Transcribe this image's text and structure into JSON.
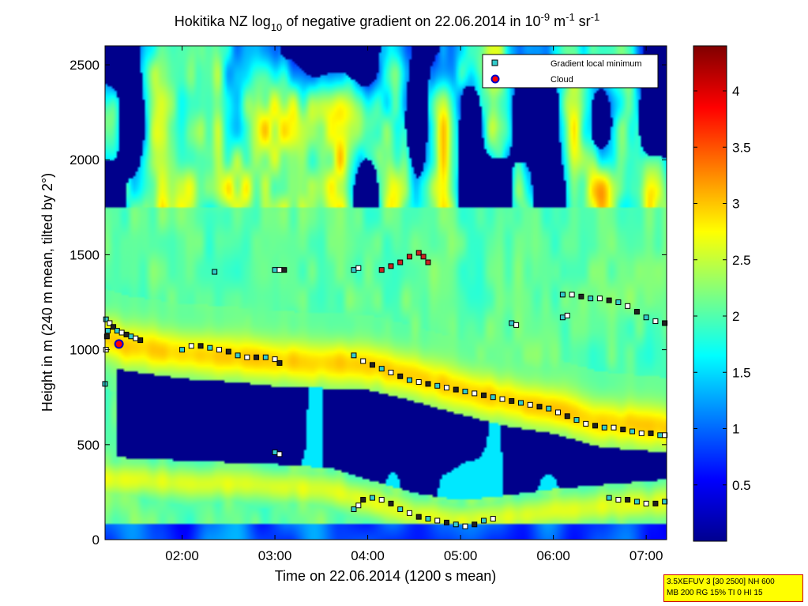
{
  "chart_data": {
    "type": "heatmap",
    "title": {
      "pre": "Hokitika NZ log",
      "sub": "10",
      "mid": " of negative gradient on 22.06.2014 in 10",
      "sup1": "-9",
      "mid2": " m",
      "sup2": "-1",
      "mid3": " sr",
      "sup3": "-1"
    },
    "xlabel": "Time on 22.06.2014 (1200 s mean)",
    "ylabel": "Height in m (240 m mean, tilted by 2°)",
    "xlim_hours": [
      1.17,
      7.22
    ],
    "ylim": [
      0,
      2600
    ],
    "xticks": [
      {
        "h": 2,
        "label": "02:00"
      },
      {
        "h": 3,
        "label": "03:00"
      },
      {
        "h": 4,
        "label": "04:00"
      },
      {
        "h": 5,
        "label": "05:00"
      },
      {
        "h": 6,
        "label": "06:00"
      },
      {
        "h": 7,
        "label": "07:00"
      }
    ],
    "yticks": [
      0,
      500,
      1000,
      1500,
      2000,
      2500
    ],
    "colorbar": {
      "range": [
        0,
        4.4
      ],
      "ticks": [
        "0.5",
        "1",
        "1.5",
        "2",
        "2.5",
        "3",
        "3.5",
        "4"
      ],
      "colormap": "jet"
    },
    "legend": {
      "position": "top-right",
      "entries": [
        {
          "label": "Gradient local minimum",
          "marker": "square",
          "color": "#33cccc"
        },
        {
          "label": "Cloud",
          "marker": "circle",
          "color": "#ff0000",
          "edge": "#0000cc"
        }
      ]
    },
    "bands": [
      {
        "name": "main-layer",
        "points": [
          [
            1.17,
            1060
          ],
          [
            1.4,
            1020
          ],
          [
            2.0,
            980
          ],
          [
            2.6,
            960
          ],
          [
            3.0,
            940
          ],
          [
            3.5,
            930
          ],
          [
            4.0,
            920
          ],
          [
            4.5,
            860
          ],
          [
            5.0,
            790
          ],
          [
            5.5,
            730
          ],
          [
            6.0,
            690
          ],
          [
            6.5,
            620
          ],
          [
            7.22,
            590
          ]
        ],
        "half_width": 120,
        "peak": 2.95
      },
      {
        "name": "lower-layer",
        "points": [
          [
            1.17,
            320
          ],
          [
            2.0,
            300
          ],
          [
            3.0,
            280
          ],
          [
            3.6,
            260
          ],
          [
            4.0,
            200
          ],
          [
            4.5,
            130
          ],
          [
            5.0,
            90
          ],
          [
            5.4,
            110
          ],
          [
            6.0,
            150
          ],
          [
            7.22,
            200
          ]
        ],
        "half_width": 90,
        "peak": 2.6
      }
    ],
    "series": [
      {
        "name": "Gradient local minimum",
        "kind": "minimum-track",
        "segments": [
          [
            [
              1.18,
              1160
            ],
            [
              1.22,
              1140
            ],
            [
              1.26,
              1120
            ],
            [
              1.3,
              1100
            ],
            [
              1.35,
              1090
            ],
            [
              1.4,
              1080
            ],
            [
              1.45,
              1070
            ],
            [
              1.5,
              1060
            ],
            [
              1.55,
              1050
            ]
          ],
          [
            [
              1.17,
              820
            ],
            [
              1.18,
              1000
            ],
            [
              1.19,
              1070
            ],
            [
              1.2,
              1100
            ]
          ],
          [
            [
              2.0,
              1000
            ],
            [
              2.1,
              1020
            ],
            [
              2.2,
              1020
            ],
            [
              2.3,
              1010
            ],
            [
              2.4,
              1000
            ],
            [
              2.5,
              990
            ],
            [
              2.6,
              970
            ],
            [
              2.7,
              960
            ],
            [
              2.8,
              960
            ],
            [
              2.9,
              960
            ],
            [
              3.0,
              950
            ],
            [
              3.05,
              930
            ]
          ],
          [
            [
              2.35,
              1410
            ]
          ],
          [
            [
              3.0,
              1420
            ],
            [
              3.05,
              1420
            ],
            [
              3.1,
              1420
            ]
          ],
          [
            [
              3.0,
              460
            ],
            [
              3.05,
              450
            ]
          ],
          [
            [
              3.85,
              1420
            ],
            [
              3.9,
              1430
            ]
          ],
          [
            [
              3.85,
              970
            ],
            [
              3.95,
              940
            ],
            [
              4.05,
              920
            ],
            [
              4.15,
              900
            ],
            [
              4.25,
              880
            ],
            [
              4.35,
              860
            ],
            [
              4.45,
              840
            ],
            [
              4.55,
              830
            ],
            [
              4.65,
              820
            ],
            [
              4.75,
              810
            ],
            [
              4.85,
              800
            ],
            [
              4.95,
              790
            ],
            [
              5.05,
              780
            ],
            [
              5.15,
              770
            ],
            [
              5.25,
              760
            ],
            [
              5.35,
              750
            ],
            [
              5.45,
              740
            ],
            [
              5.55,
              730
            ],
            [
              5.65,
              720
            ],
            [
              5.75,
              710
            ],
            [
              5.85,
              700
            ],
            [
              5.95,
              690
            ],
            [
              6.05,
              670
            ],
            [
              6.15,
              650
            ],
            [
              6.25,
              630
            ],
            [
              6.35,
              610
            ],
            [
              6.45,
              600
            ],
            [
              6.55,
              590
            ],
            [
              6.65,
              590
            ],
            [
              6.75,
              580
            ],
            [
              6.85,
              570
            ],
            [
              6.95,
              560
            ],
            [
              7.05,
              560
            ],
            [
              7.15,
              550
            ],
            [
              7.2,
              550
            ]
          ],
          [
            [
              4.15,
              1420
            ],
            [
              4.25,
              1440
            ],
            [
              4.35,
              1460
            ],
            [
              4.45,
              1490
            ],
            [
              4.55,
              1510
            ],
            [
              4.6,
              1490
            ],
            [
              4.65,
              1460
            ]
          ],
          [
            [
              3.85,
              160
            ],
            [
              3.9,
              180
            ],
            [
              3.95,
              210
            ],
            [
              4.05,
              220
            ],
            [
              4.15,
              210
            ],
            [
              4.25,
              190
            ],
            [
              4.35,
              160
            ],
            [
              4.45,
              140
            ],
            [
              4.55,
              120
            ],
            [
              4.65,
              110
            ],
            [
              4.75,
              100
            ],
            [
              4.85,
              90
            ],
            [
              4.95,
              80
            ],
            [
              5.05,
              70
            ],
            [
              5.15,
              80
            ],
            [
              5.25,
              100
            ],
            [
              5.35,
              110
            ]
          ],
          [
            [
              5.55,
              1140
            ],
            [
              5.6,
              1130
            ]
          ],
          [
            [
              6.1,
              1170
            ],
            [
              6.15,
              1180
            ]
          ],
          [
            [
              6.1,
              1290
            ],
            [
              6.2,
              1290
            ],
            [
              6.3,
              1280
            ],
            [
              6.4,
              1270
            ],
            [
              6.5,
              1270
            ],
            [
              6.6,
              1260
            ],
            [
              6.7,
              1250
            ],
            [
              6.8,
              1230
            ],
            [
              6.9,
              1200
            ],
            [
              7.0,
              1170
            ],
            [
              7.1,
              1150
            ],
            [
              7.2,
              1140
            ]
          ],
          [
            [
              6.6,
              220
            ],
            [
              6.7,
              210
            ],
            [
              6.8,
              210
            ],
            [
              6.9,
              200
            ],
            [
              7.0,
              190
            ],
            [
              7.1,
              190
            ],
            [
              7.2,
              200
            ]
          ]
        ]
      },
      {
        "name": "Cloud",
        "kind": "cloud",
        "points": [
          [
            1.32,
            1030
          ]
        ]
      }
    ]
  },
  "info_box": {
    "line1": "3.5XEFUV 3 [30 2500] NH 600",
    "line2": "MB 200 RG 15% TI 0 HI 15"
  }
}
